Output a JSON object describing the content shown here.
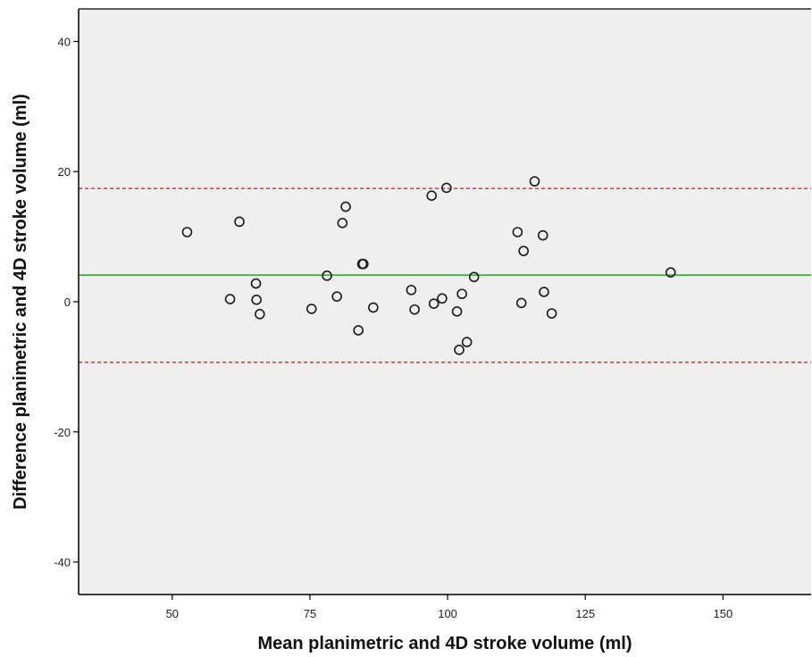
{
  "chart_data": {
    "type": "scatter",
    "title": "",
    "xlabel": "Mean planimetric and 4D stroke volume (ml)",
    "ylabel": "Difference planimetric and 4D stroke volume (ml)",
    "xlim": [
      33,
      166
    ],
    "ylim": [
      -45,
      45
    ],
    "x_ticks": [
      50,
      75,
      100,
      125,
      150
    ],
    "y_ticks": [
      -40,
      -20,
      0,
      20,
      40
    ],
    "x_tick_labels": [
      "50",
      "75",
      "100",
      "125",
      "150"
    ],
    "y_tick_labels": [
      "-40",
      "-20",
      "0",
      "20",
      "40"
    ],
    "grid": false,
    "legend": "none",
    "colors": {
      "plot_background": "#efefef",
      "marker_edge": "#1a1a1a",
      "mean_line": "#22aa22",
      "limit_lines": "#e04545"
    },
    "reference_lines": [
      {
        "role": "mean difference",
        "y": 4.1,
        "style": "solid",
        "color": "#22aa22"
      },
      {
        "role": "upper limit of agreement",
        "y": 17.4,
        "style": "dashed",
        "color": "#e04545"
      },
      {
        "role": "lower limit of agreement",
        "y": -9.3,
        "style": "dashed",
        "color": "#e04545"
      }
    ],
    "series": [
      {
        "points": [
          {
            "x": 52.7,
            "y": 10.7
          },
          {
            "x": 60.5,
            "y": 0.4
          },
          {
            "x": 62.2,
            "y": 12.3
          },
          {
            "x": 65.2,
            "y": 2.8
          },
          {
            "x": 65.3,
            "y": 0.3
          },
          {
            "x": 65.9,
            "y": -1.9
          },
          {
            "x": 75.3,
            "y": -1.1
          },
          {
            "x": 78.1,
            "y": 4.0
          },
          {
            "x": 79.9,
            "y": 0.8
          },
          {
            "x": 80.9,
            "y": 12.1
          },
          {
            "x": 81.5,
            "y": 14.6
          },
          {
            "x": 83.8,
            "y": -4.4
          },
          {
            "x": 84.5,
            "y": 5.8
          },
          {
            "x": 84.7,
            "y": 5.8
          },
          {
            "x": 86.5,
            "y": -0.9
          },
          {
            "x": 93.4,
            "y": 1.8
          },
          {
            "x": 94.0,
            "y": -1.2
          },
          {
            "x": 97.1,
            "y": 16.3
          },
          {
            "x": 97.5,
            "y": -0.3
          },
          {
            "x": 99.0,
            "y": 0.5
          },
          {
            "x": 99.8,
            "y": 17.5
          },
          {
            "x": 101.7,
            "y": -1.5
          },
          {
            "x": 102.1,
            "y": -7.4
          },
          {
            "x": 102.6,
            "y": 1.2
          },
          {
            "x": 103.5,
            "y": -6.2
          },
          {
            "x": 104.8,
            "y": 3.8
          },
          {
            "x": 112.7,
            "y": 10.7
          },
          {
            "x": 113.4,
            "y": -0.2
          },
          {
            "x": 113.8,
            "y": 7.8
          },
          {
            "x": 115.8,
            "y": 18.5
          },
          {
            "x": 117.3,
            "y": 10.2
          },
          {
            "x": 117.5,
            "y": 1.5
          },
          {
            "x": 118.9,
            "y": -1.8
          },
          {
            "x": 140.5,
            "y": 4.5
          }
        ]
      }
    ]
  }
}
